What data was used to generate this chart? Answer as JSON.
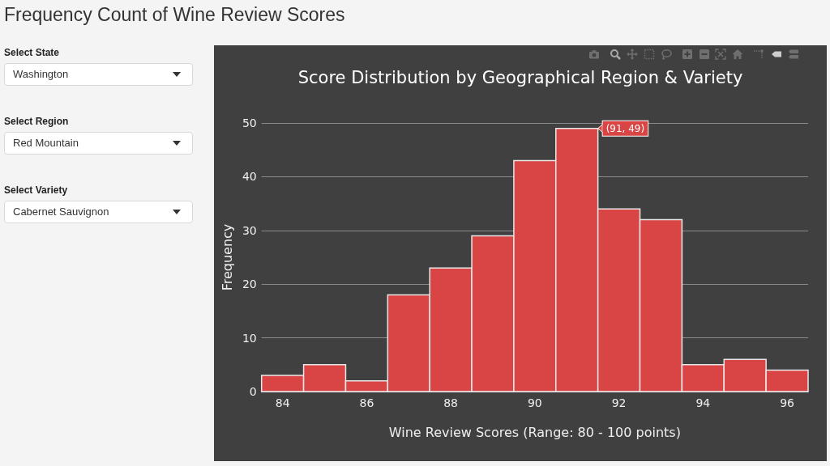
{
  "chart_data": [
    {
      "type": "other",
      "title": "Frequency Count of Wine Review Scores",
      "annotations": [
        "Select State",
        "Washington",
        "Select Region",
        "Red Mountain",
        "Select Variety",
        "Cabernet Sauvignon"
      ]
    },
    {
      "type": "histogram",
      "title": "Score Distribution by Geographical Region & Variety",
      "xlabel": "Wine Review Scores (Range: 80 - 100 points)",
      "ylabel": "Frequency",
      "bins": [
        83.5,
        84.5,
        85.5,
        86.5,
        87.5,
        88.5,
        89.5,
        90.5,
        91.5,
        92.5,
        93.5,
        94.5,
        95.5,
        96.5
      ],
      "values": [
        3,
        5,
        2,
        18,
        23,
        29,
        43,
        49,
        34,
        32,
        5,
        6,
        4
      ],
      "color": "#d94545",
      "xlim": [
        83.5,
        96.5
      ],
      "xticks": [
        84,
        86,
        88,
        90,
        92,
        94,
        96
      ],
      "ylim": [
        0,
        50
      ],
      "yticks": [
        0,
        10,
        20,
        30,
        40,
        50
      ],
      "grid": "y",
      "annotations": [
        {
          "text": "(91, 49)",
          "x": 91.5,
          "y": 49
        }
      ]
    }
  ]
}
